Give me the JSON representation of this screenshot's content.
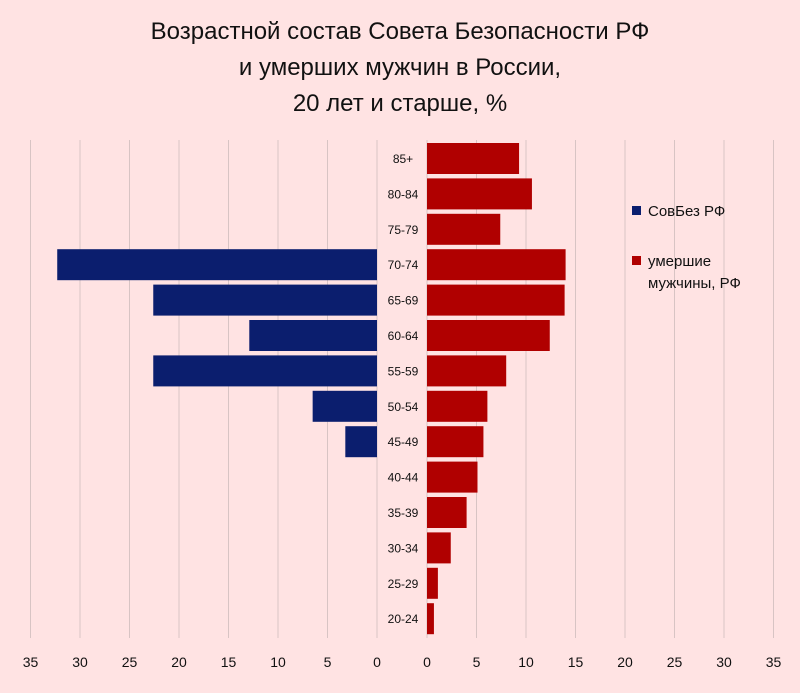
{
  "chart_data": {
    "type": "bar",
    "orientation": "horizontal-pyramid",
    "title_lines": [
      "Возрастной состав Совета Безопасности РФ",
      "и умерших мужчин в России,",
      "20 лет и старше, %"
    ],
    "categories": [
      "85+",
      "80-84",
      "75-79",
      "70-74",
      "65-69",
      "60-64",
      "55-59",
      "50-54",
      "45-49",
      "40-44",
      "35-39",
      "30-34",
      "25-29",
      "20-24"
    ],
    "series": [
      {
        "name": "СовБез РФ",
        "color": "#0b1e6e",
        "side": "left",
        "values": [
          0,
          0,
          0,
          32.3,
          22.6,
          12.9,
          22.6,
          6.5,
          3.2,
          0,
          0,
          0,
          0,
          0
        ]
      },
      {
        "name": "умершие мужчины, РФ",
        "color": "#b00000",
        "side": "right",
        "values": [
          9.3,
          10.6,
          7.4,
          14.0,
          13.9,
          12.4,
          8.0,
          6.1,
          5.7,
          5.1,
          4.0,
          2.4,
          1.1,
          0.7
        ]
      }
    ],
    "left_axis": {
      "range": [
        0,
        35
      ],
      "ticks": [
        "35",
        "30",
        "25",
        "20",
        "15",
        "10",
        "5",
        "0"
      ]
    },
    "right_axis": {
      "range": [
        0,
        35
      ],
      "ticks": [
        "0",
        "5",
        "10",
        "15",
        "20",
        "25",
        "30",
        "35"
      ]
    },
    "grid": true,
    "legend_position": "right"
  }
}
